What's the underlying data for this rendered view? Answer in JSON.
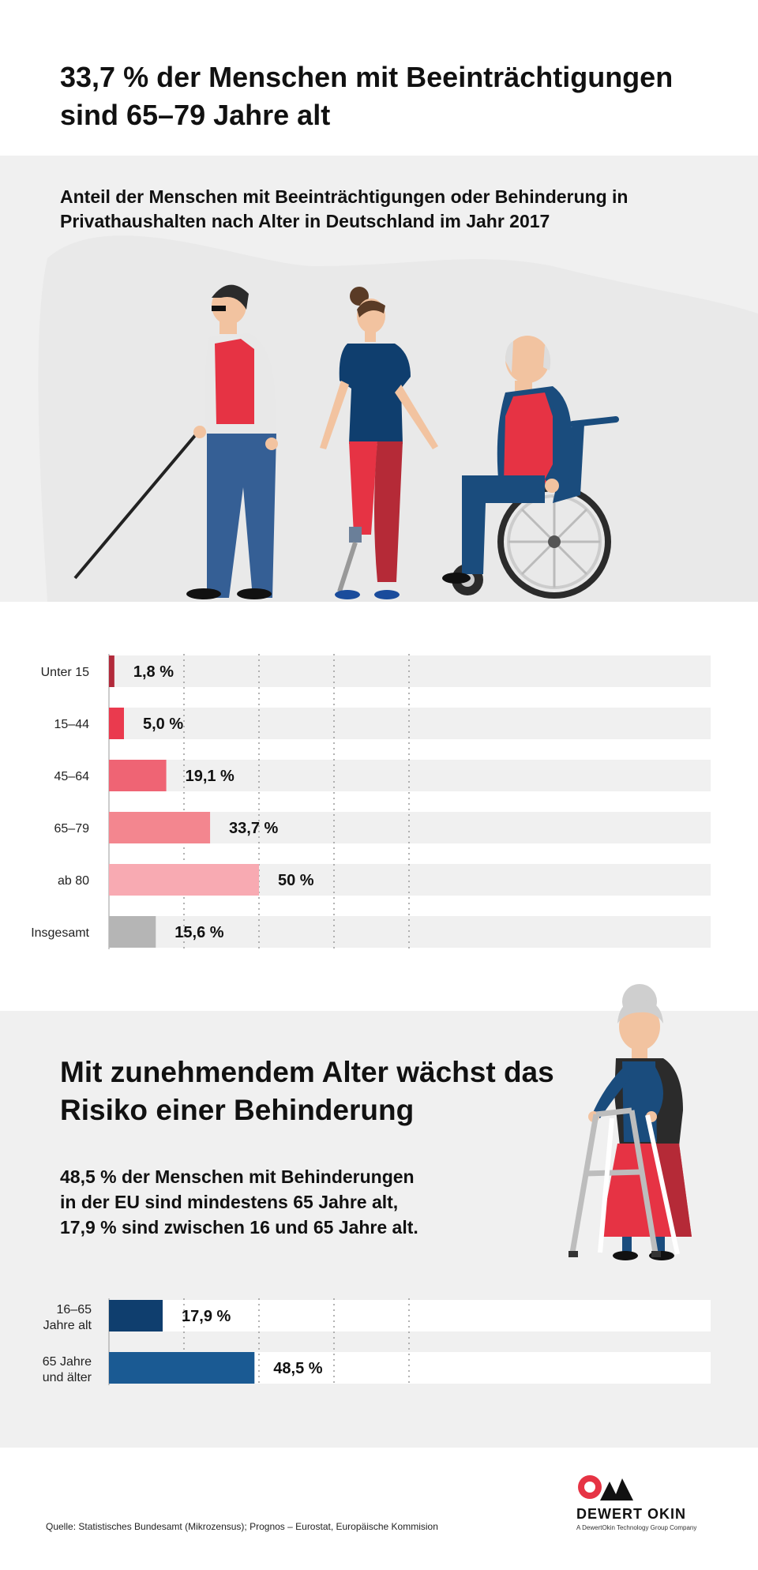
{
  "header": {
    "title": "33,7 % der Menschen mit Beeinträchtigungen sind 65–79 Jahre alt"
  },
  "section1": {
    "subtitle": "Anteil der Menschen mit Beeinträchtigungen oder Behinderung in Privathaushalten nach Alter in Deutschland im Jahr 2017"
  },
  "section2": {
    "heading": "Mit zunehmendem Alter wächst das Risiko einer Behinderung",
    "paragraph_lines": [
      "48,5 % der Menschen mit Behinderungen",
      "in der EU sind mindestens 65 Jahre alt,",
      "17,9 % sind zwischen 16 und 65 Jahre alt."
    ]
  },
  "chart_data": [
    {
      "type": "bar",
      "orientation": "horizontal",
      "categories": [
        "Unter 15",
        "15–44",
        "45–64",
        "65–79",
        "ab 80",
        "Insgesamt"
      ],
      "values": [
        1.8,
        5.0,
        19.1,
        33.7,
        50,
        15.6
      ],
      "value_labels": [
        "1,8 %",
        "5,0 %",
        "19,1 %",
        "33,7 %",
        "50 %",
        "15,6 %"
      ],
      "colors": [
        "#b22a3b",
        "#ea3a4e",
        "#ef6474",
        "#f3868f",
        "#f8aab2",
        "#b5b5b5"
      ],
      "xlim": [
        0,
        100
      ],
      "grid": true,
      "track_color": "#f0f0f0"
    },
    {
      "type": "bar",
      "orientation": "horizontal",
      "categories": [
        "16–65 Jahre alt",
        "65 Jahre und älter"
      ],
      "category_lines": [
        [
          "16–65",
          "Jahre alt"
        ],
        [
          "65 Jahre",
          "und älter"
        ]
      ],
      "values": [
        17.9,
        48.5
      ],
      "value_labels": [
        "17,9 %",
        "48,5 %"
      ],
      "colors": [
        "#0f3e6e",
        "#1a5a93"
      ],
      "xlim": [
        0,
        100
      ],
      "grid": true,
      "track_color": "#ffffff"
    }
  ],
  "footer": {
    "source": "Quelle: Statistisches Bundesamt (Mikrozensus); Prognos – Eurostat, Europäische Kommision",
    "logo_name": "DEWERT OKIN",
    "logo_tagline": "A DewertOkin Technology Group Company"
  },
  "colors": {
    "band": "#f0f0f0",
    "accent_red": "#e63344",
    "accent_blue": "#1a4c7d"
  }
}
